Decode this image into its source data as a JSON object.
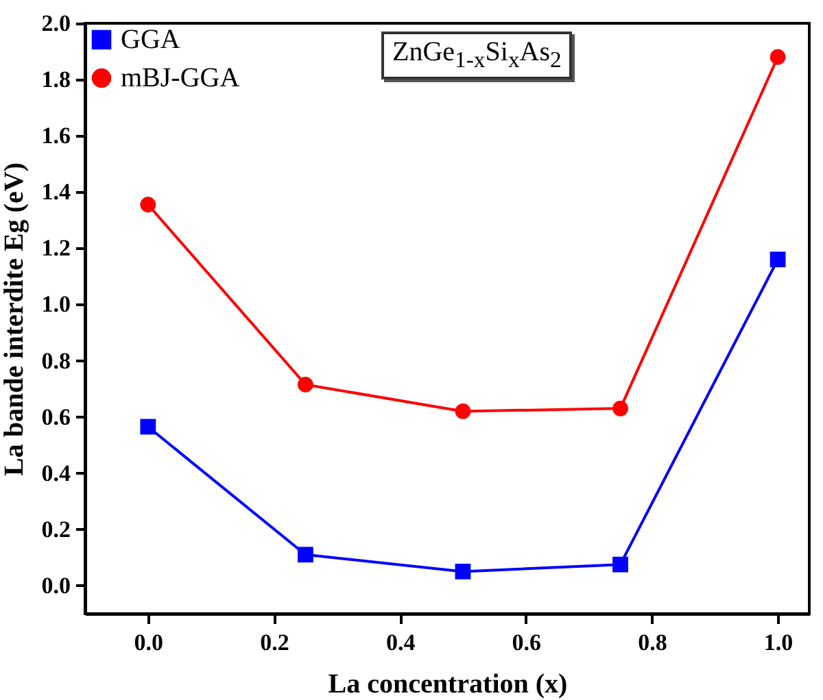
{
  "chart_data": {
    "type": "line",
    "xlabel": "La concentration (x)",
    "ylabel": "La bande interdite Eg (eV)",
    "x": [
      0,
      0.25,
      0.5,
      0.75,
      1.0
    ],
    "series": [
      {
        "name": "GGA",
        "color": "#0000ff",
        "marker": "square",
        "values": [
          0.565,
          0.11,
          0.05,
          0.075,
          1.16
        ]
      },
      {
        "name": "mBJ-GGA",
        "color": "#ff0000",
        "marker": "circle",
        "values": [
          1.355,
          0.715,
          0.62,
          0.63,
          1.88
        ]
      }
    ],
    "xlim": [
      -0.1,
      1.05
    ],
    "xticks": [
      {
        "value": 0,
        "label": "0.0"
      },
      0.2,
      0.4,
      0.6,
      0.8,
      {
        "value": 1,
        "label": "1.0"
      }
    ],
    "ylim": [
      -0.1,
      2.0
    ],
    "yticks": [
      {
        "value": 0,
        "label": "0.0"
      },
      0.2,
      0.4,
      0.6,
      0.8,
      {
        "value": 1,
        "label": "1.0"
      },
      1.2,
      1.4,
      1.6,
      1.8,
      {
        "value": 2,
        "label": "2.0"
      }
    ],
    "legend": "top left",
    "grid": false,
    "annotations": [
      "ZnGe$_{1-x}$Si$_{x}$As$_{2}$"
    ]
  }
}
